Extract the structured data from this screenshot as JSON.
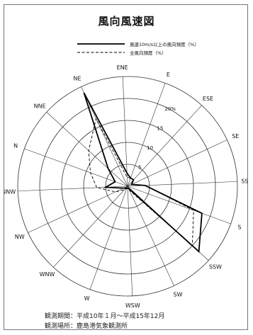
{
  "title": "風向風速図",
  "chart_data": {
    "type": "radar",
    "title": "風向風速図",
    "directions": [
      "E",
      "ENE",
      "NE",
      "NNE",
      "N",
      "NNW",
      "NW",
      "WNW",
      "W",
      "WSW",
      "SW",
      "SSW",
      "S",
      "SSE",
      "SE",
      "ESE"
    ],
    "radial_ticks": [
      5,
      10,
      15,
      20
    ],
    "radial_tick_labels": [
      "5",
      "10",
      "15",
      "20%"
    ],
    "rmax": 25,
    "series": [
      {
        "name": "風速10m/s以上の風向頻度（%）",
        "style": "solid",
        "values": [
          2,
          3,
          23.5,
          6,
          3,
          5,
          1,
          0.5,
          0.5,
          0.5,
          0.5,
          22,
          18,
          4,
          1,
          2
        ]
      },
      {
        "name": "全風向頻度（%）",
        "style": "dashed",
        "values": [
          2,
          2,
          17,
          12,
          9,
          7,
          3,
          1,
          0.5,
          0.5,
          1,
          20,
          16,
          4,
          1,
          2
        ]
      }
    ]
  },
  "legend": [
    {
      "label": "風速10m/s以上の風向頻度（%）",
      "style": "solid"
    },
    {
      "label": "全風向頻度（%）",
      "style": "dashed"
    }
  ],
  "notes": {
    "period": "観測期間：平成10年１月～平成15年12月",
    "place": "観測場所：鹿島港気象観測所"
  }
}
